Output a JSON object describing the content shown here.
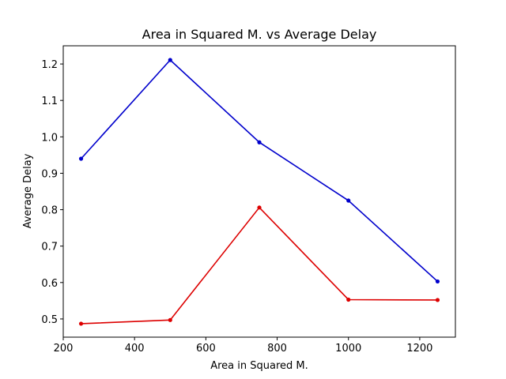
{
  "chart_data": {
    "type": "line",
    "title": "Area in Squared M. vs Average Delay",
    "xlabel": "Area in Squared M.",
    "ylabel": "Average Delay",
    "xlim": [
      200,
      1300
    ],
    "ylim": [
      0.45,
      1.25
    ],
    "xticks": [
      200,
      400,
      600,
      800,
      1000,
      1200
    ],
    "yticks": [
      0.5,
      0.6,
      0.7,
      0.8,
      0.9,
      1.0,
      1.1,
      1.2
    ],
    "ytick_labels": [
      "0.5",
      "0.6",
      "0.7",
      "0.8",
      "0.9",
      "1.0",
      "1.1",
      "1.2"
    ],
    "grid": false,
    "x": [
      250,
      500,
      750,
      1000,
      1250
    ],
    "series": [
      {
        "color": "#0000cc",
        "marker": "dot",
        "values": [
          0.94,
          1.211,
          0.985,
          0.825,
          0.603
        ]
      },
      {
        "color": "#dd0000",
        "marker": "dot",
        "values": [
          0.487,
          0.497,
          0.806,
          0.553,
          0.552
        ]
      }
    ]
  }
}
